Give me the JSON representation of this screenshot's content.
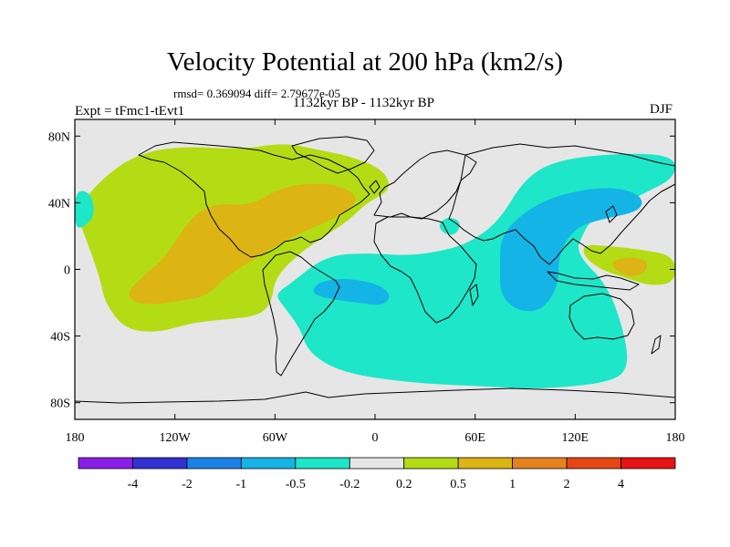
{
  "chart_data": {
    "type": "heatmap",
    "title": "Velocity Potential at 200 hPa (km2/s)",
    "stats_line": "rmsd= 0.369094 diff= 2.79677e-05",
    "left_label": "Expt = tFmc1-tEvt1",
    "center_label": "1132kyr BP - 1132kyr BP",
    "right_label": "DJF",
    "x_axis": {
      "range": [
        -180,
        180
      ],
      "ticks": [
        {
          "value": -180,
          "label": "180"
        },
        {
          "value": -120,
          "label": "120W"
        },
        {
          "value": -60,
          "label": "60W"
        },
        {
          "value": 0,
          "label": "0"
        },
        {
          "value": 60,
          "label": "60E"
        },
        {
          "value": 120,
          "label": "120E"
        },
        {
          "value": 180,
          "label": "180"
        }
      ]
    },
    "y_axis": {
      "range": [
        -90,
        90
      ],
      "ticks": [
        {
          "value": 80,
          "label": "80N"
        },
        {
          "value": 40,
          "label": "40N"
        },
        {
          "value": 0,
          "label": "0"
        },
        {
          "value": -40,
          "label": "40S"
        },
        {
          "value": -80,
          "label": "80S"
        }
      ]
    },
    "colorbar": {
      "colors": [
        "#8a1ee6",
        "#3232d2",
        "#1a82e6",
        "#14b4e6",
        "#1ee6c8",
        "#e6e6e6",
        "#b4dc14",
        "#dcb414",
        "#e6821e",
        "#e64614",
        "#e61414"
      ],
      "tick_labels": [
        "-4",
        "-2",
        "-1",
        "-0.5",
        "-0.2",
        "0.2",
        "0.5",
        "1",
        "2",
        "4"
      ]
    },
    "regions": [
      {
        "level": "0.2 to 0.5",
        "color": "#b4dc14",
        "description": "positive anomaly over Pacific/Americas/Atlantic",
        "outline": [
          [
            -178,
            38
          ],
          [
            -160,
            58
          ],
          [
            -140,
            70
          ],
          [
            -115,
            74
          ],
          [
            -80,
            72
          ],
          [
            -55,
            76
          ],
          [
            -35,
            72
          ],
          [
            -15,
            68
          ],
          [
            5,
            60
          ],
          [
            10,
            48
          ],
          [
            -5,
            40
          ],
          [
            -15,
            30
          ],
          [
            -30,
            20
          ],
          [
            -45,
            10
          ],
          [
            -60,
            -5
          ],
          [
            -62,
            -20
          ],
          [
            -70,
            -28
          ],
          [
            -90,
            -30
          ],
          [
            -110,
            -32
          ],
          [
            -130,
            -38
          ],
          [
            -150,
            -36
          ],
          [
            -162,
            -20
          ],
          [
            -165,
            -5
          ],
          [
            -172,
            15
          ],
          [
            -178,
            30
          ]
        ]
      },
      {
        "level": "0.5 to 1",
        "color": "#dcb414",
        "description": "stronger positive core",
        "outline": [
          [
            -125,
            8
          ],
          [
            -110,
            32
          ],
          [
            -95,
            40
          ],
          [
            -75,
            38
          ],
          [
            -55,
            50
          ],
          [
            -30,
            52
          ],
          [
            -15,
            48
          ],
          [
            -10,
            40
          ],
          [
            -25,
            30
          ],
          [
            -45,
            22
          ],
          [
            -70,
            8
          ],
          [
            -90,
            -5
          ],
          [
            -100,
            -15
          ],
          [
            -110,
            -18
          ],
          [
            -140,
            -22
          ],
          [
            -150,
            -15
          ],
          [
            -140,
            -5
          ]
        ]
      },
      {
        "level": "0.2 to 0.5",
        "color": "#b4dc14",
        "description": "positive anomaly over western Pacific",
        "outline": [
          [
            125,
            15
          ],
          [
            140,
            14
          ],
          [
            160,
            12
          ],
          [
            180,
            8
          ],
          [
            180,
            -8
          ],
          [
            165,
            -10
          ],
          [
            150,
            -5
          ],
          [
            135,
            0
          ],
          [
            125,
            8
          ]
        ]
      },
      {
        "level": "0.5 to 1",
        "color": "#dcb414",
        "description": "western Pacific core",
        "outline": [
          [
            140,
            5
          ],
          [
            155,
            8
          ],
          [
            165,
            4
          ],
          [
            160,
            -4
          ],
          [
            148,
            -4
          ]
        ]
      },
      {
        "level": "-0.5 to -0.2",
        "color": "#1ee6c8",
        "description": "negative anomaly over Atlantic/Africa/Indian Ocean",
        "outline": [
          [
            -50,
            -8
          ],
          [
            -30,
            8
          ],
          [
            -5,
            10
          ],
          [
            20,
            8
          ],
          [
            45,
            12
          ],
          [
            60,
            18
          ],
          [
            75,
            30
          ],
          [
            90,
            55
          ],
          [
            110,
            66
          ],
          [
            150,
            70
          ],
          [
            180,
            68
          ],
          [
            180,
            55
          ],
          [
            160,
            45
          ],
          [
            140,
            35
          ],
          [
            130,
            30
          ],
          [
            125,
            22
          ],
          [
            120,
            10
          ],
          [
            140,
            -10
          ],
          [
            150,
            -40
          ],
          [
            152,
            -60
          ],
          [
            140,
            -68
          ],
          [
            100,
            -72
          ],
          [
            60,
            -70
          ],
          [
            20,
            -68
          ],
          [
            -20,
            -62
          ],
          [
            -40,
            -50
          ],
          [
            -45,
            -35
          ],
          [
            -55,
            -22
          ],
          [
            -60,
            -15
          ]
        ]
      },
      {
        "level": "-1 to -0.5",
        "color": "#14b4e6",
        "description": "stronger negative over South Atlantic",
        "outline": [
          [
            -35,
            -8
          ],
          [
            -20,
            -5
          ],
          [
            0,
            -8
          ],
          [
            10,
            -15
          ],
          [
            5,
            -22
          ],
          [
            -10,
            -20
          ],
          [
            -25,
            -18
          ],
          [
            -38,
            -15
          ]
        ]
      },
      {
        "level": "-1 to -0.5",
        "color": "#14b4e6",
        "description": "stronger negative over Indian Ocean / East Asia",
        "outline": [
          [
            75,
            20
          ],
          [
            90,
            35
          ],
          [
            110,
            45
          ],
          [
            140,
            50
          ],
          [
            160,
            45
          ],
          [
            160,
            35
          ],
          [
            135,
            30
          ],
          [
            120,
            25
          ],
          [
            110,
            10
          ],
          [
            110,
            -10
          ],
          [
            100,
            -25
          ],
          [
            85,
            -25
          ],
          [
            75,
            -15
          ],
          [
            75,
            0
          ]
        ]
      },
      {
        "level": "-0.5 to -0.2",
        "color": "#1ee6c8",
        "description": "small negative patch near eastern Mediterranean",
        "outline": [
          [
            38,
            28
          ],
          [
            45,
            32
          ],
          [
            52,
            28
          ],
          [
            48,
            20
          ],
          [
            40,
            22
          ]
        ]
      },
      {
        "level": "-0.5 to -0.2",
        "color": "#1ee6c8",
        "description": "small negative patch at western edge",
        "outline": [
          [
            -180,
            48
          ],
          [
            -170,
            46
          ],
          [
            -168,
            32
          ],
          [
            -175,
            25
          ],
          [
            -180,
            25
          ]
        ]
      }
    ]
  }
}
